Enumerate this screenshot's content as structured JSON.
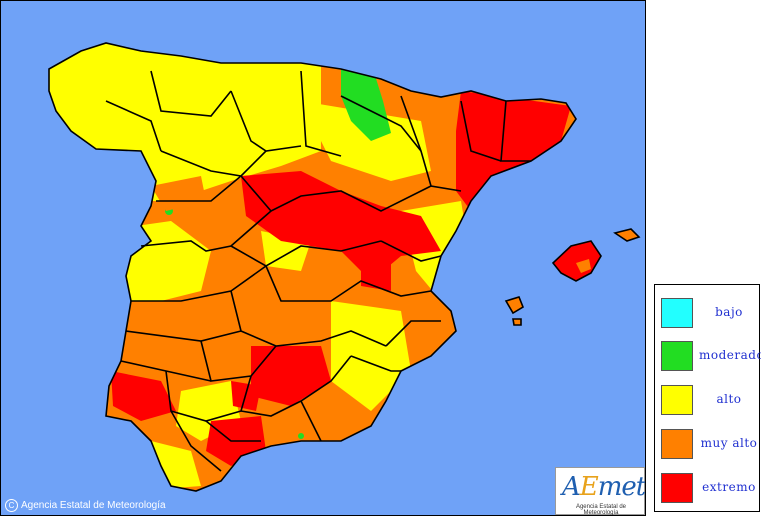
{
  "map": {
    "sea_color": "#6fa2f7",
    "risk_colors": {
      "bajo": "#00ffff",
      "moderado": "#00e000",
      "alto": "#ffff00",
      "muy_alto": "#ff8000",
      "extremo": "#ff0000"
    }
  },
  "legend": {
    "items": [
      {
        "label": "bajo",
        "color": "#22ffff"
      },
      {
        "label": "moderado",
        "color": "#22dd22"
      },
      {
        "label": "alto",
        "color": "#ffff00"
      },
      {
        "label": "muy alto",
        "color": "#ff8000"
      },
      {
        "label": "extremo",
        "color": "#ff0000"
      }
    ]
  },
  "footer": {
    "copyright_symbol": "C",
    "copyright_text": "Agencia Estatal de Meteorología",
    "logo_text": "AEmet",
    "logo_subtitle": "Agencia Estatal de Meteorología"
  }
}
